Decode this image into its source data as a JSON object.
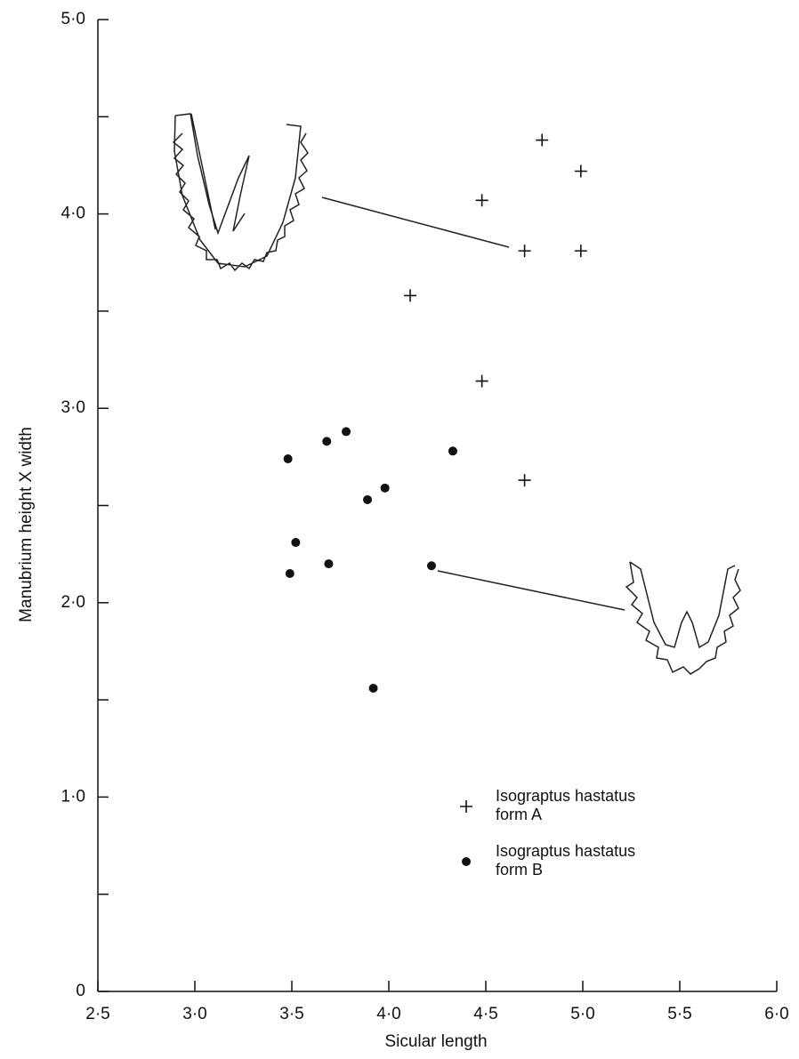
{
  "chart_data": {
    "type": "scatter",
    "x_label": "Sicular length",
    "y_label": "Manubrium height  X  width",
    "xlim": [
      2.5,
      6.0
    ],
    "ylim": [
      0,
      5.0
    ],
    "xticks": [
      {
        "value": 2.5,
        "label": "2·5"
      },
      {
        "value": 3.0,
        "label": "3·0"
      },
      {
        "value": 3.5,
        "label": "3·5"
      },
      {
        "value": 4.0,
        "label": "4·0"
      },
      {
        "value": 4.5,
        "label": "4·5"
      },
      {
        "value": 5.0,
        "label": "5·0"
      },
      {
        "value": 5.5,
        "label": "5·5"
      },
      {
        "value": 6.0,
        "label": "6·0"
      }
    ],
    "yticks": [
      0,
      {
        "value": 1.0,
        "label": "1·0"
      },
      {
        "value": 2.0,
        "label": "2·0"
      },
      {
        "value": 3.0,
        "label": "3·0"
      },
      {
        "value": 4.0,
        "label": "4·0"
      },
      {
        "value": 5.0,
        "label": "5·0"
      }
    ],
    "series": [
      {
        "name": "Isograptus hastatus form A",
        "marker": "plus",
        "color": "#111111",
        "x": [
          4.79,
          4.99,
          4.48,
          4.7,
          4.99,
          4.11,
          4.48,
          4.7
        ],
        "values": [
          4.38,
          4.22,
          4.07,
          3.81,
          3.81,
          3.58,
          3.14,
          2.63
        ]
      },
      {
        "name": "Isograptus hastatus form B",
        "marker": "dot",
        "color": "#111111",
        "x": [
          3.48,
          3.68,
          3.78,
          4.33,
          3.98,
          3.89,
          3.52,
          3.69,
          3.49,
          4.22,
          3.92
        ],
        "values": [
          2.74,
          2.83,
          2.88,
          2.78,
          2.59,
          2.53,
          2.31,
          2.2,
          2.15,
          2.19,
          1.56
        ]
      }
    ]
  }
}
